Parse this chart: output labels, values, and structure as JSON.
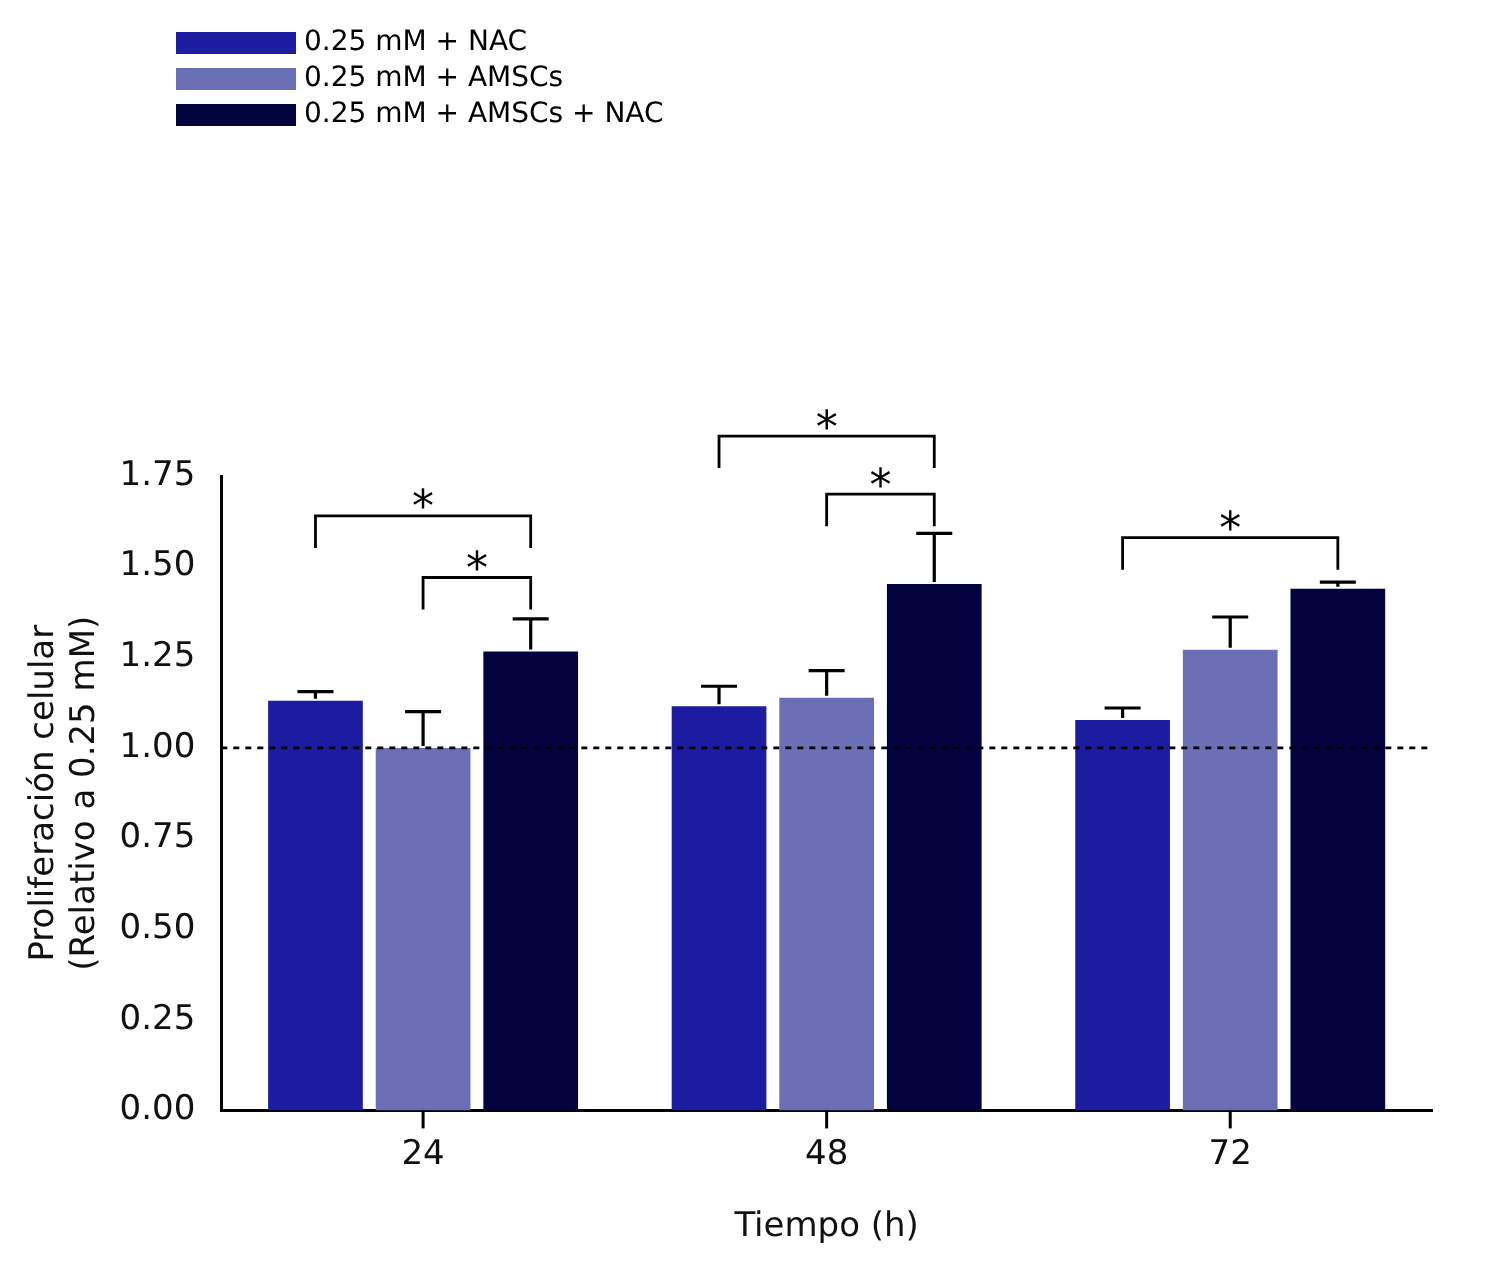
{
  "chart_data": {
    "type": "bar",
    "xlabel": "Tiempo (h)",
    "ylabel": "Proliferación celular\n(Relativo a 0.25 mM)",
    "categories": [
      "24",
      "48",
      "72"
    ],
    "series": [
      {
        "name": "0.25 mM + NAC",
        "color": "#1c1ca0",
        "values": [
          1.13,
          1.115,
          1.077
        ],
        "errors": [
          0.025,
          0.055,
          0.033
        ]
      },
      {
        "name": "0.25 mM + AMSCs",
        "color": "#6a6fb5",
        "values": [
          1.0,
          1.138,
          1.271
        ],
        "errors": [
          0.1,
          0.075,
          0.09
        ]
      },
      {
        "name": "0.25 mM + AMSCs + NAC",
        "color": "#02033f",
        "values": [
          1.266,
          1.452,
          1.439
        ],
        "errors": [
          0.09,
          0.14,
          0.018
        ]
      }
    ],
    "ylim": [
      0,
      1.75
    ],
    "yticks": [
      {
        "value": 0,
        "label": "0.00"
      },
      {
        "value": 0.25,
        "label": "0.25"
      },
      {
        "value": 0.5,
        "label": "0.50"
      },
      {
        "value": 0.75,
        "label": "0.75"
      },
      {
        "value": 1,
        "label": "1.00"
      },
      {
        "value": 1.25,
        "label": "1.25"
      },
      {
        "value": 1.5,
        "label": "1.50"
      },
      {
        "value": 1.75,
        "label": "1.75"
      }
    ],
    "ref_lines": [
      {
        "axis": "y",
        "value": 1,
        "line_style": "dotted",
        "color": "#000000"
      }
    ],
    "annotations": [
      "*",
      "*",
      "*",
      "*",
      "*"
    ],
    "grid": false,
    "legend": "top left"
  }
}
